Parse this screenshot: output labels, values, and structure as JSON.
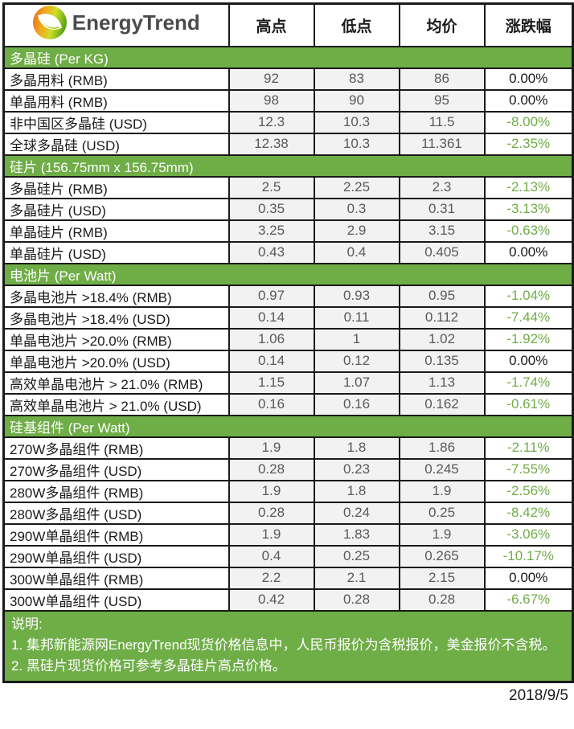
{
  "header": {
    "logo_text": "EnergyTrend",
    "columns": [
      "高点",
      "低点",
      "均价",
      "涨跌幅"
    ]
  },
  "sections": [
    {
      "title": "多晶硅 (Per KG)",
      "rows": [
        {
          "label": "多晶用料 (RMB)",
          "high": "92",
          "low": "83",
          "avg": "86",
          "change": "0.00%"
        },
        {
          "label": "单晶用料 (RMB)",
          "high": "98",
          "low": "90",
          "avg": "95",
          "change": "0.00%"
        },
        {
          "label": "非中国区多晶硅 (USD)",
          "high": "12.3",
          "low": "10.3",
          "avg": "11.5",
          "change": "-8.00%"
        },
        {
          "label": "全球多晶硅 (USD)",
          "high": "12.38",
          "low": "10.3",
          "avg": "11.361",
          "change": "-2.35%"
        }
      ]
    },
    {
      "title": "硅片 (156.75mm x 156.75mm)",
      "rows": [
        {
          "label": "多晶硅片 (RMB)",
          "high": "2.5",
          "low": "2.25",
          "avg": "2.3",
          "change": "-2.13%"
        },
        {
          "label": "多晶硅片 (USD)",
          "high": "0.35",
          "low": "0.3",
          "avg": "0.31",
          "change": "-3.13%"
        },
        {
          "label": "单晶硅片 (RMB)",
          "high": "3.25",
          "low": "2.9",
          "avg": "3.15",
          "change": "-0.63%"
        },
        {
          "label": "单晶硅片 (USD)",
          "high": "0.43",
          "low": "0.4",
          "avg": "0.405",
          "change": "0.00%"
        }
      ]
    },
    {
      "title": "电池片 (Per Watt)",
      "rows": [
        {
          "label": "多晶电池片  >18.4% (RMB)",
          "high": "0.97",
          "low": "0.93",
          "avg": "0.95",
          "change": "-1.04%"
        },
        {
          "label": "多晶电池片  >18.4% (USD)",
          "high": "0.14",
          "low": "0.11",
          "avg": "0.112",
          "change": "-7.44%"
        },
        {
          "label": "单晶电池片 >20.0% (RMB)",
          "high": "1.06",
          "low": "1",
          "avg": "1.02",
          "change": "-1.92%"
        },
        {
          "label": "单晶电池片 >20.0% (USD)",
          "high": "0.14",
          "low": "0.12",
          "avg": "0.135",
          "change": "0.00%"
        },
        {
          "label": "高效单晶电池片 > 21.0% (RMB)",
          "high": "1.15",
          "low": "1.07",
          "avg": "1.13",
          "change": "-1.74%"
        },
        {
          "label": "高效单晶电池片 > 21.0% (USD)",
          "high": "0.16",
          "low": "0.16",
          "avg": "0.162",
          "change": "-0.61%"
        }
      ]
    },
    {
      "title": "硅基组件 (Per Watt)",
      "rows": [
        {
          "label": "270W多晶组件 (RMB)",
          "high": "1.9",
          "low": "1.8",
          "avg": "1.86",
          "change": "-2.11%"
        },
        {
          "label": "270W多晶组件 (USD)",
          "high": "0.28",
          "low": "0.23",
          "avg": "0.245",
          "change": "-7.55%"
        },
        {
          "label": "280W多晶组件 (RMB)",
          "high": "1.9",
          "low": "1.8",
          "avg": "1.9",
          "change": "-2.56%"
        },
        {
          "label": "280W多晶组件 (USD)",
          "high": "0.28",
          "low": "0.24",
          "avg": "0.25",
          "change": "-8.42%"
        },
        {
          "label": "290W单晶组件 (RMB)",
          "high": "1.9",
          "low": "1.83",
          "avg": "1.9",
          "change": "-3.06%"
        },
        {
          "label": "290W单晶组件 (USD)",
          "high": "0.4",
          "low": "0.25",
          "avg": "0.265",
          "change": "-10.17%"
        },
        {
          "label": "300W单晶组件 (RMB)",
          "high": "2.2",
          "low": "2.1",
          "avg": "2.15",
          "change": "0.00%"
        },
        {
          "label": "300W单晶组件 (USD)",
          "high": "0.42",
          "low": "0.28",
          "avg": "0.28",
          "change": "-6.67%"
        }
      ]
    }
  ],
  "notes": {
    "title": "说明:",
    "items": [
      "1. 集邦新能源网EnergyTrend现货价格信息中，人民币报价为含税报价，美金报价不含税。",
      "2. 黑硅片现货价格可参考多晶硅片高点价格。"
    ]
  },
  "footer": {
    "date": "2018/9/5"
  },
  "colors": {
    "section_green": "#6FAD47",
    "negative_green": "#70AD47",
    "cell_gray": "#F2F2F2",
    "number_gray": "#595959",
    "border_black": "#1A1A1A",
    "logo_orange": "#E8641C",
    "logo_yellow": "#F0A81C",
    "logo_green": "#59A416",
    "logo_text_gray": "#4B4B4B"
  }
}
